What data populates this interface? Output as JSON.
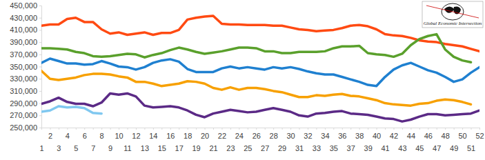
{
  "chart_data": {
    "type": "line",
    "annotations": [
      "Global Economic Intersection"
    ],
    "x": [
      1,
      2,
      3,
      4,
      5,
      6,
      7,
      8,
      9,
      10,
      11,
      12,
      13,
      14,
      15,
      16,
      17,
      18,
      19,
      20,
      21,
      22,
      23,
      24,
      25,
      26,
      27,
      28,
      29,
      30,
      31,
      32,
      33,
      34,
      35,
      36,
      37,
      38,
      39,
      40,
      41,
      42,
      43,
      44,
      45,
      46,
      47,
      48,
      49,
      50,
      51,
      52
    ],
    "xlim": [
      1,
      52
    ],
    "xticks": [
      1,
      2,
      3,
      4,
      5,
      6,
      7,
      8,
      9,
      10,
      11,
      12,
      13,
      14,
      15,
      16,
      17,
      18,
      19,
      20,
      21,
      22,
      23,
      24,
      25,
      26,
      27,
      28,
      29,
      30,
      31,
      32,
      33,
      34,
      35,
      36,
      37,
      38,
      39,
      40,
      41,
      42,
      43,
      44,
      45,
      46,
      47,
      48,
      49,
      50,
      51,
      52
    ],
    "ylim": [
      250000,
      450000
    ],
    "yticks": [
      {
        "value": 250000,
        "label": "250,000"
      },
      {
        "value": 270000,
        "label": "270,000"
      },
      {
        "value": 290000,
        "label": "290,000"
      },
      {
        "value": 310000,
        "label": "310,000"
      },
      {
        "value": 330000,
        "label": "330,000"
      },
      {
        "value": 350000,
        "label": "350,000"
      },
      {
        "value": 370000,
        "label": "370,000"
      },
      {
        "value": 390000,
        "label": "390,000"
      },
      {
        "value": 410000,
        "label": "410,000"
      },
      {
        "value": 430000,
        "label": "430,000"
      },
      {
        "value": 450000,
        "label": "450,000"
      }
    ],
    "grid": false,
    "series": [
      {
        "color": "#ff4a12",
        "values": [
          417000,
          419000,
          419000,
          428000,
          430000,
          423000,
          423000,
          411000,
          404000,
          406000,
          402000,
          404000,
          406000,
          402000,
          405000,
          405000,
          410000,
          427000,
          430000,
          432000,
          433000,
          420000,
          419000,
          419000,
          418000,
          418000,
          418000,
          417000,
          417000,
          414000,
          411000,
          410000,
          408000,
          409000,
          410000,
          413000,
          417000,
          418000,
          416000,
          411000,
          403000,
          401000,
          400000,
          397000,
          393000,
          391000,
          390000,
          387000,
          385000,
          383000,
          379000,
          375000
        ]
      },
      {
        "color": "#5aa02c",
        "values": [
          380000,
          380000,
          379000,
          378000,
          374000,
          372000,
          367000,
          366000,
          367000,
          369000,
          371000,
          370000,
          365000,
          369000,
          372000,
          377000,
          381000,
          378000,
          374000,
          371000,
          373000,
          375000,
          378000,
          381000,
          381000,
          380000,
          375000,
          375000,
          372000,
          372000,
          374000,
          374000,
          374000,
          375000,
          380000,
          383000,
          383000,
          384000,
          372000,
          370000,
          369000,
          366000,
          371000,
          385000,
          395000,
          400000,
          403000,
          378000,
          366000,
          360000,
          357000,
          null
        ]
      },
      {
        "color": "#1f80d0",
        "values": [
          356000,
          363000,
          359000,
          355000,
          355000,
          353000,
          354000,
          359000,
          355000,
          350000,
          349000,
          345000,
          349000,
          356000,
          360000,
          362000,
          358000,
          346000,
          341000,
          341000,
          341000,
          347000,
          350000,
          347000,
          349000,
          347000,
          345000,
          349000,
          347000,
          349000,
          346000,
          342000,
          339000,
          337000,
          337000,
          333000,
          329000,
          325000,
          320000,
          318000,
          333000,
          345000,
          352000,
          356000,
          350000,
          344000,
          340000,
          333000,
          325000,
          329000,
          340000,
          349000
        ]
      },
      {
        "color": "#f7a000",
        "values": [
          343000,
          330000,
          328000,
          330000,
          332000,
          336000,
          338000,
          338000,
          337000,
          334000,
          332000,
          325000,
          325000,
          322000,
          318000,
          320000,
          322000,
          326000,
          325000,
          322000,
          315000,
          312000,
          316000,
          312000,
          315000,
          315000,
          313000,
          310000,
          308000,
          304000,
          300000,
          300000,
          303000,
          302000,
          304000,
          305000,
          302000,
          301000,
          298000,
          295000,
          290000,
          288000,
          287000,
          286000,
          289000,
          290000,
          294000,
          296000,
          295000,
          292000,
          288000,
          null
        ]
      },
      {
        "color": "#5b2a86",
        "values": [
          289000,
          293000,
          299000,
          292000,
          289000,
          289000,
          285000,
          291000,
          306000,
          304000,
          306000,
          301000,
          286000,
          283000,
          284000,
          285000,
          283000,
          278000,
          271000,
          267000,
          273000,
          276000,
          279000,
          277000,
          275000,
          276000,
          279000,
          282000,
          279000,
          276000,
          270000,
          268000,
          273000,
          274000,
          276000,
          277000,
          273000,
          272000,
          271000,
          268000,
          265000,
          264000,
          260000,
          263000,
          268000,
          272000,
          272000,
          270000,
          271000,
          272000,
          273000,
          278000
        ]
      },
      {
        "color": "#80c8f0",
        "values": [
          276000,
          278000,
          285000,
          283000,
          284000,
          282000,
          274000,
          273000,
          null,
          null,
          null,
          null,
          null,
          null,
          null,
          null,
          null,
          null,
          null,
          null,
          null,
          null,
          null,
          null,
          null,
          null,
          null,
          null,
          null,
          null,
          null,
          null,
          null,
          null,
          null,
          null,
          null,
          null,
          null,
          null,
          null,
          null,
          null,
          null,
          null,
          null,
          null,
          null,
          null,
          null,
          null,
          null
        ]
      }
    ]
  }
}
